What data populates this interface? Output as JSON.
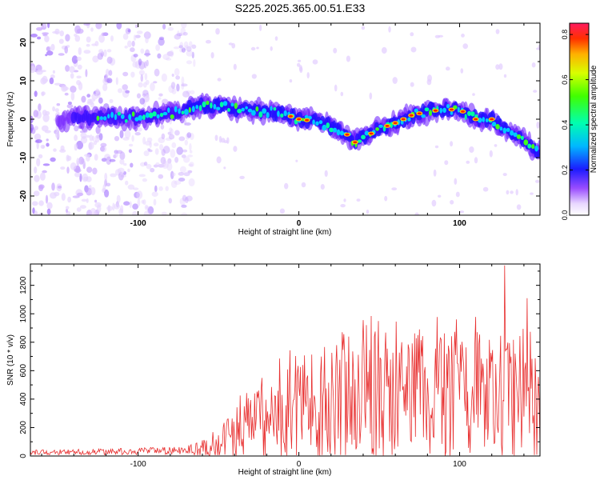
{
  "title": "S225.2025.365.00.51.E33",
  "chart_data": [
    {
      "type": "heatmap",
      "name": "spectrogram",
      "xlabel": "Height of straight line (km)",
      "ylabel": "Frequency (Hz)",
      "xlim": [
        -167,
        150
      ],
      "ylim": [
        -25,
        25
      ],
      "xticks": [
        -100,
        0,
        100
      ],
      "yticks": [
        -20,
        -10,
        0,
        10,
        20
      ],
      "colorbar": {
        "label": "Normalized spectral amplitude",
        "range": [
          0,
          0.85
        ],
        "ticks": [
          0.0,
          0.2,
          0.4,
          0.6,
          0.8
        ]
      },
      "ridge": {
        "x": [
          -160,
          -130,
          -110,
          -95,
          -80,
          -65,
          -50,
          -35,
          -20,
          -10,
          0,
          10,
          20,
          30,
          35,
          40,
          50,
          60,
          70,
          80,
          90,
          100,
          110,
          120,
          130,
          140,
          148
        ],
        "y": [
          -0.5,
          0.5,
          0.5,
          0.5,
          1.5,
          3,
          3.5,
          2.5,
          2,
          1.5,
          0,
          -0.5,
          -2,
          -4,
          -6,
          -5,
          -2.5,
          -1,
          1,
          2,
          2.5,
          2.5,
          0,
          0,
          -3,
          -5.5,
          -8.5
        ]
      },
      "noise_region": {
        "x_from": -167,
        "x_to": -65
      }
    },
    {
      "type": "line",
      "name": "snr",
      "xlabel": "Height of straight line (km)",
      "ylabel": "SNR (10 * v/v)",
      "xlim": [
        -167,
        150
      ],
      "ylim": [
        0,
        1350
      ],
      "xticks": [
        -100,
        0,
        100
      ],
      "yticks": [
        0,
        200,
        400,
        600,
        800,
        1000,
        1200
      ],
      "color": "#e83030",
      "envelope": {
        "x": [
          -167,
          -120,
          -70,
          -55,
          -45,
          -30,
          -15,
          0,
          15,
          30,
          45,
          60,
          80,
          100,
          120,
          140,
          150
        ],
        "y": [
          25,
          30,
          40,
          60,
          130,
          220,
          280,
          330,
          370,
          400,
          420,
          410,
          430,
          420,
          410,
          380,
          360
        ]
      },
      "peaks": [
        {
          "x": -25,
          "y": 460
        },
        {
          "x": 27,
          "y": 870
        },
        {
          "x": 42,
          "y": 920
        },
        {
          "x": 64,
          "y": 800
        },
        {
          "x": 74,
          "y": 850
        },
        {
          "x": 88,
          "y": 830
        },
        {
          "x": 98,
          "y": 960
        },
        {
          "x": 111,
          "y": 870
        },
        {
          "x": 128,
          "y": 1340
        },
        {
          "x": 142,
          "y": 1110
        }
      ]
    }
  ]
}
